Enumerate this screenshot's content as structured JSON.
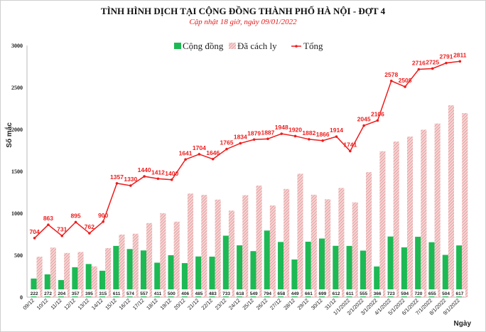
{
  "chart_data": {
    "type": "bar",
    "title": "TÌNH HÌNH DỊCH TẠI CỘNG ĐỒNG THÀNH PHỐ HÀ NỘI - ĐỢT 4",
    "subtitle": "Cập nhật 18 giờ, ngày 09/01/2022",
    "xlabel": "Ngày",
    "ylabel": "Số mắc",
    "ylim": [
      0,
      3000
    ],
    "yticks": [
      0,
      500,
      1000,
      1500,
      2000,
      2500,
      3000
    ],
    "grid": false,
    "legend": "top",
    "categories": [
      "09/12",
      "10/12",
      "11/12",
      "12/12",
      "13/12",
      "14/12",
      "15/12",
      "16/12",
      "17/12",
      "18/12",
      "19/12",
      "20/12",
      "21/12",
      "22/12",
      "23/12",
      "24/12",
      "25/12",
      "26/12",
      "27/12",
      "28/12",
      "29/12",
      "30/12",
      "31/12",
      "1/1/2022",
      "2/1/2022",
      "3/1/2022",
      "4/1/2022",
      "5/1/2022",
      "6/1/2022",
      "7/1/2022",
      "8/1/2022",
      "9/1/2022"
    ],
    "series": [
      {
        "name": "Cộng đồng",
        "type": "bar",
        "color": "#1db954",
        "values": [
          222,
          272,
          204,
          357,
          395,
          315,
          611,
          574,
          557,
          411,
          500,
          406,
          485,
          483,
          733,
          618,
          549,
          794,
          658,
          449,
          661,
          699,
          612,
          611,
          555,
          366,
          723,
          594,
          720,
          655,
          504,
          617
        ]
      },
      {
        "name": "Đã cách ly",
        "type": "bar",
        "color": "#e8a3a3",
        "values": [
          482,
          591,
          527,
          538,
          367,
          585,
          746,
          756,
          883,
          1001,
          900,
          1235,
          1219,
          1163,
          1032,
          1216,
          1330,
          1093,
          1290,
          1471,
          1221,
          1167,
          1302,
          1130,
          1490,
          1740,
          1855,
          1914,
          1996,
          2070,
          2287,
          2194
        ]
      },
      {
        "name": "Tổng",
        "type": "line",
        "color": "#ee1c1c",
        "values": [
          704,
          863,
          731,
          895,
          762,
          900,
          1357,
          1330,
          1440,
          1412,
          1400,
          1641,
          1704,
          1646,
          1765,
          1834,
          1879,
          1887,
          1948,
          1920,
          1882,
          1866,
          1914,
          1741,
          2045,
          2106,
          2578,
          2508,
          2716,
          2725,
          2791,
          2811
        ]
      }
    ]
  }
}
